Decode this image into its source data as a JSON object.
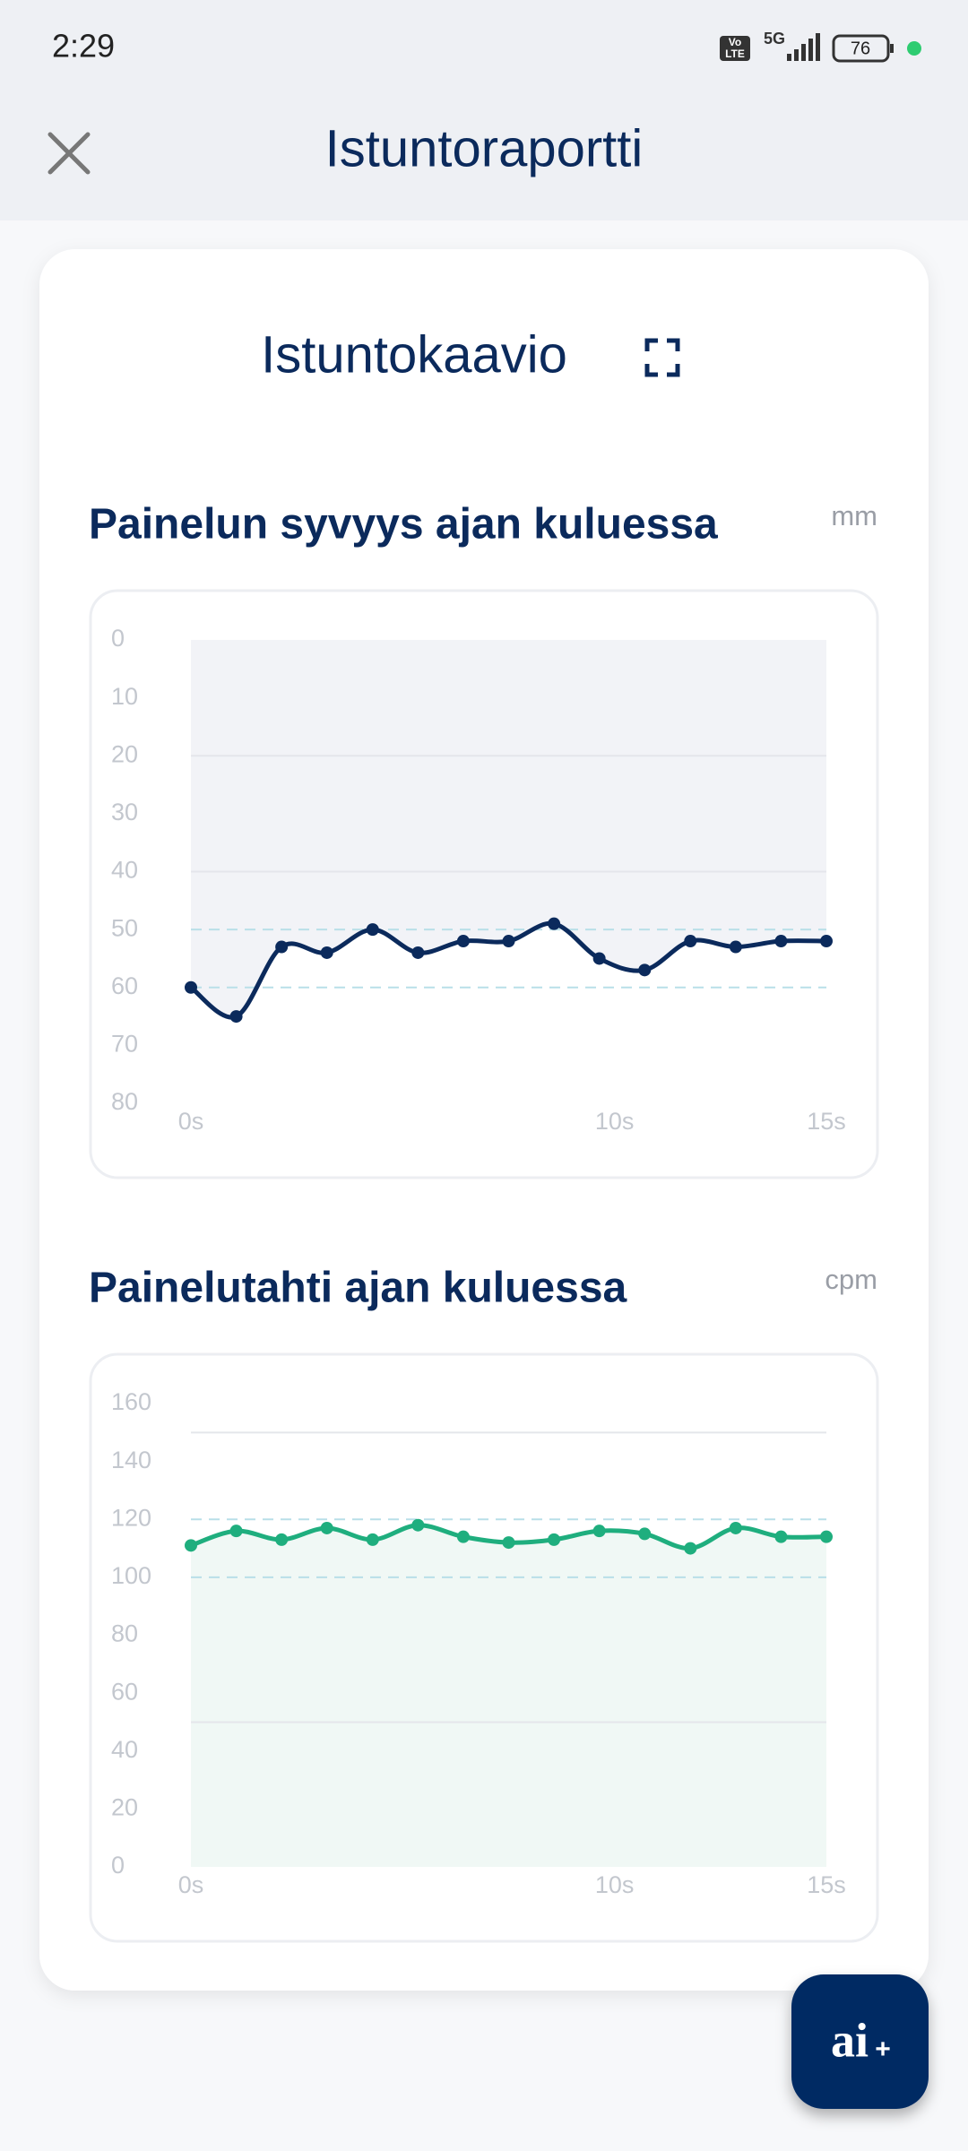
{
  "status_bar": {
    "time": "2:29",
    "volte_top": "Vo",
    "volte_bottom": "LTE",
    "network": "5G",
    "battery": "76"
  },
  "header": {
    "title": "Istuntoraportti"
  },
  "card": {
    "title": "Istuntokaavio"
  },
  "fab": {
    "label": "ai",
    "sup": "+"
  },
  "chart_data": [
    {
      "type": "area",
      "title": "Painelun syvyys ajan kuluessa",
      "unit": "mm",
      "x": [
        0,
        1.07,
        2.14,
        3.21,
        4.29,
        5.36,
        6.43,
        7.5,
        8.57,
        9.64,
        10.71,
        11.79,
        12.86,
        13.93,
        15
      ],
      "values": [
        60,
        65,
        53,
        54,
        50,
        54,
        52,
        52,
        49,
        55,
        57,
        52,
        53,
        52,
        52
      ],
      "color": "#0b2a5c",
      "fill_color": "#f2f3f7",
      "xlim": [
        0,
        15
      ],
      "xticks": [
        {
          "value": 0,
          "label": "0s"
        },
        {
          "value": 10,
          "label": "10s"
        },
        {
          "value": 15,
          "label": "15s"
        }
      ],
      "ylim": [
        0,
        80
      ],
      "yticks": [
        0,
        10,
        20,
        30,
        40,
        50,
        60,
        70,
        80
      ],
      "y_inverted": true,
      "grid_values": [
        20,
        40
      ],
      "target_range": [
        50,
        60
      ]
    },
    {
      "type": "area",
      "title": "Painelutahti ajan kuluessa",
      "unit": "cpm",
      "x": [
        0,
        1.07,
        2.14,
        3.21,
        4.29,
        5.36,
        6.43,
        7.5,
        8.57,
        9.64,
        10.71,
        11.79,
        12.86,
        13.93,
        15
      ],
      "values": [
        111,
        116,
        113,
        117,
        113,
        118,
        114,
        112,
        113,
        116,
        115,
        110,
        117,
        114,
        114
      ],
      "color": "#1fae7e",
      "fill_color": "#f0f8f5",
      "xlim": [
        0,
        15
      ],
      "xticks": [
        {
          "value": 0,
          "label": "0s"
        },
        {
          "value": 10,
          "label": "10s"
        },
        {
          "value": 15,
          "label": "15s"
        }
      ],
      "ylim": [
        0,
        160
      ],
      "yticks": [
        0,
        20,
        40,
        60,
        80,
        100,
        120,
        140,
        160
      ],
      "y_inverted": false,
      "grid_values": [
        50,
        150
      ],
      "target_range": [
        100,
        120
      ]
    }
  ]
}
